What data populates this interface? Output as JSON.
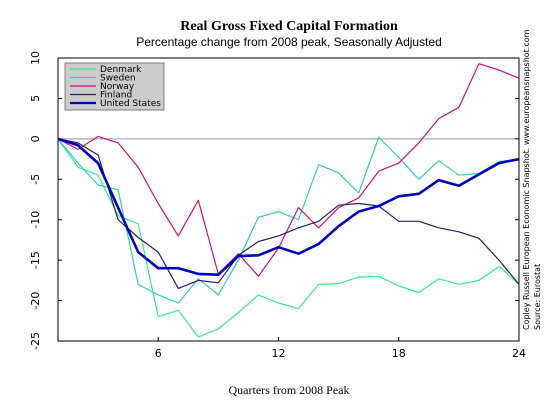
{
  "chart_data": {
    "type": "line",
    "title": "Real Gross Fixed Capital Formation",
    "subtitle": "Percentage change from 2008 peak, Seasonally Adjusted",
    "xlabel": "Quarters from 2008 Peak",
    "ylabel": "",
    "xlim": [
      1,
      24
    ],
    "ylim": [
      -25,
      10
    ],
    "xticks": [
      6,
      12,
      18,
      24
    ],
    "yticks": [
      10,
      5,
      0,
      -5,
      -10,
      -15,
      -20,
      -25
    ],
    "grid": false,
    "legend_position": "top-left",
    "credit_lines": [
      "Copley Russell European Economic Snapshot. www.europeansnapshot.com",
      "Source: Eurostat"
    ],
    "x": [
      1,
      2,
      3,
      4,
      5,
      6,
      7,
      8,
      9,
      10,
      11,
      12,
      13,
      14,
      15,
      16,
      17,
      18,
      19,
      20,
      21,
      22,
      23,
      24
    ],
    "series": [
      {
        "name": "Denmark",
        "color": "#33ee88",
        "width": 1.2,
        "values": [
          0,
          -3.5,
          -4.5,
          -9.5,
          -10.5,
          -22,
          -21.2,
          -24.5,
          -23.5,
          -21.5,
          -19.3,
          -20.3,
          -21,
          -18,
          -17.9,
          -17.1,
          -17,
          -18.2,
          -19,
          -17.3,
          -18,
          -17.5,
          -15.8,
          -18
        ]
      },
      {
        "name": "Sweden",
        "color": "#33ccbb",
        "width": 1.2,
        "values": [
          0,
          -3,
          -5.7,
          -6.3,
          -18,
          -19.3,
          -20.3,
          -17.3,
          -19.3,
          -15,
          -9.7,
          -9,
          -10,
          -3.2,
          -4.2,
          -6.7,
          0.2,
          -2.3,
          -5,
          -2.7,
          -4.5,
          -4.3,
          -2.8,
          -2.5
        ]
      },
      {
        "name": "Norway",
        "color": "#cc1177",
        "width": 1.2,
        "values": [
          0,
          -1.3,
          0.3,
          -0.5,
          -3.5,
          -8,
          -12,
          -7.6,
          -16.7,
          -14.2,
          -17,
          -13.5,
          -8.5,
          -11,
          -8.5,
          -7.3,
          -4,
          -3,
          -0.5,
          2.5,
          3.9,
          9.3,
          8.5,
          7.5
        ]
      },
      {
        "name": "Finland",
        "color": "#222266",
        "width": 1.2,
        "values": [
          0,
          -0.5,
          -2,
          -10,
          -12.2,
          -14,
          -18.5,
          -17.5,
          -17.8,
          -14.4,
          -12.7,
          -12,
          -11,
          -10.2,
          -8.2,
          -8,
          -8.3,
          -10.2,
          -10.2,
          -11,
          -11.5,
          -12.3,
          -15,
          -18
        ]
      },
      {
        "name": "United States",
        "color": "#0000bb",
        "width": 2.6,
        "values": [
          0,
          -0.8,
          -3,
          -8.5,
          -14,
          -16,
          -16,
          -16.7,
          -16.8,
          -14.5,
          -14.4,
          -13.4,
          -14.2,
          -13,
          -10.8,
          -9,
          -8.3,
          -7.1,
          -6.8,
          -5.1,
          -5.8,
          -4.4,
          -3,
          -2.5
        ]
      }
    ]
  }
}
